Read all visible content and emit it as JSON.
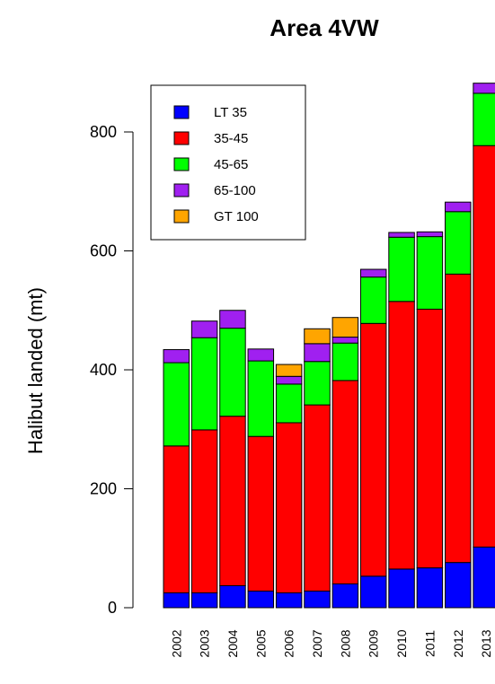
{
  "chart_data": {
    "type": "bar",
    "stacked": true,
    "title": "Area 4VW",
    "xlabel": "",
    "ylabel": "Halibut landed (mt)",
    "ylim": [
      0,
      880
    ],
    "yticks": [
      0,
      200,
      400,
      600,
      800
    ],
    "categories": [
      "2002",
      "2003",
      "2004",
      "2005",
      "2006",
      "2007",
      "2008",
      "2009",
      "2010",
      "2011",
      "2012",
      "2013"
    ],
    "legend_position": "top-left",
    "series": [
      {
        "name": "LT 35",
        "color": "#0000ff",
        "values": [
          25,
          25,
          37,
          28,
          25,
          28,
          40,
          53,
          65,
          67,
          76,
          102
        ]
      },
      {
        "name": "35-45",
        "color": "#ff0000",
        "values": [
          247,
          274,
          285,
          260,
          286,
          313,
          342,
          425,
          450,
          435,
          485,
          675
        ]
      },
      {
        "name": "45-65",
        "color": "#00ff00",
        "values": [
          140,
          155,
          148,
          127,
          65,
          73,
          63,
          78,
          108,
          122,
          105,
          88
        ]
      },
      {
        "name": "65-100",
        "color": "#a020f0",
        "values": [
          22,
          28,
          30,
          20,
          13,
          30,
          10,
          13,
          8,
          8,
          16,
          17
        ]
      },
      {
        "name": "GT 100",
        "color": "#ffa500",
        "values": [
          0,
          0,
          0,
          0,
          20,
          25,
          33,
          0,
          0,
          0,
          0,
          0
        ]
      }
    ]
  }
}
